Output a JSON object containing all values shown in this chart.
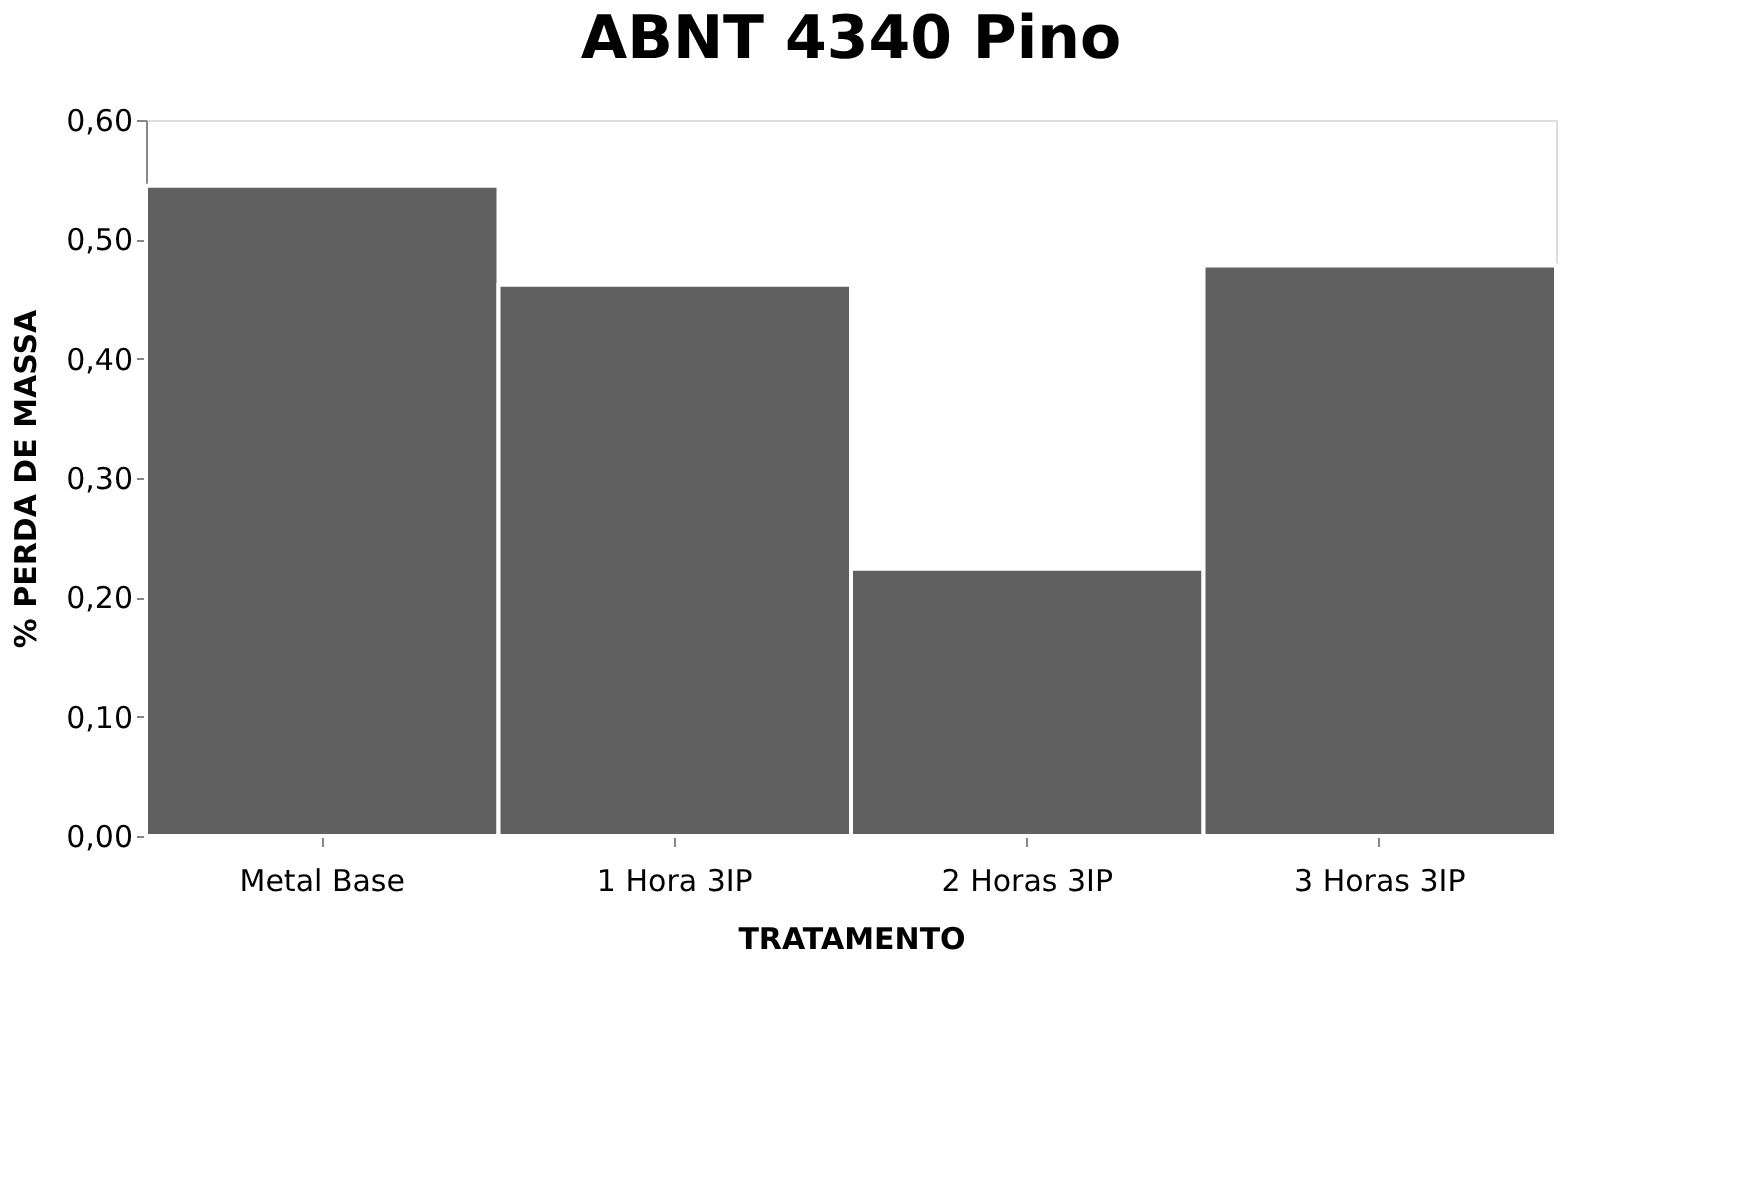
{
  "chart_data": {
    "type": "bar",
    "title": "ABNT 4340 Pino",
    "xlabel": "TRATAMENTO",
    "ylabel": "% PERDA DE MASSA",
    "categories": [
      "Metal Base",
      "1 Hora 3IP",
      "2 Horas 3IP",
      "3 Horas 3IP"
    ],
    "values": [
      0.545,
      0.462,
      0.224,
      0.478
    ],
    "color": "#606060",
    "ylim": [
      0,
      0.6
    ],
    "yticks": [
      {
        "value": 0,
        "label": "0,00"
      },
      {
        "value": 0.1,
        "label": "0,10"
      },
      {
        "value": 0.2,
        "label": "0,20"
      },
      {
        "value": 0.3,
        "label": "0,30"
      },
      {
        "value": 0.4,
        "label": "0,40"
      },
      {
        "value": 0.5,
        "label": "0,50"
      },
      {
        "value": 0.6,
        "label": "0,60"
      }
    ],
    "grid": false
  }
}
